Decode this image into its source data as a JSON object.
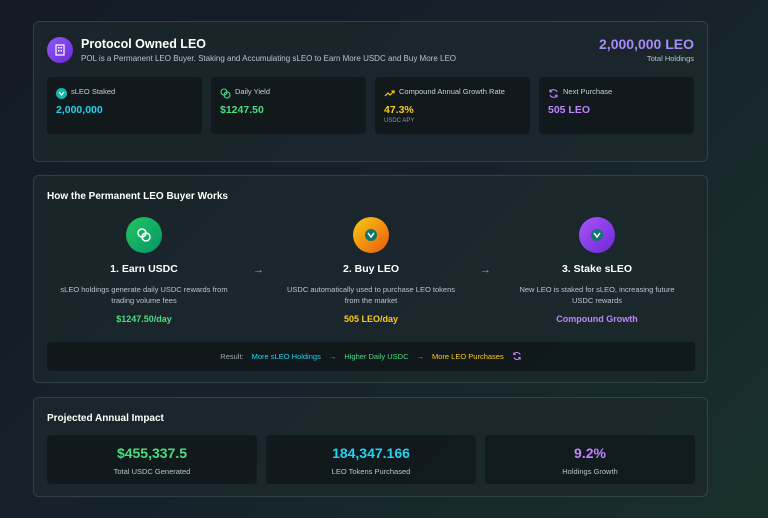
{
  "header": {
    "title": "Protocol Owned LEO",
    "subtitle": "POL is a Permanent LEO Buyer. Staking and Accumulating sLEO to Earn More USDC and Buy More LEO",
    "total_holdings_value": "2,000,000 LEO",
    "total_holdings_label": "Total Holdings"
  },
  "stats": [
    {
      "label": "sLEO Staked",
      "value": "2,000,000",
      "icon": "sleo-logo-icon",
      "color": "#22d3ee"
    },
    {
      "label": "Daily Yield",
      "value": "$1247.50",
      "icon": "coins-icon",
      "color": "#4ade80"
    },
    {
      "label": "Compound Annual Growth Rate",
      "value": "47.3%",
      "note": "USDC APY",
      "icon": "trending-up-icon",
      "color": "#facc15"
    },
    {
      "label": "Next Purchase",
      "value": "505 LEO",
      "icon": "refresh-icon",
      "color": "#c084fc"
    }
  ],
  "how": {
    "title": "How the Permanent LEO Buyer Works",
    "steps": [
      {
        "title": "1. Earn USDC",
        "desc_line1": "sLEO holdings generate daily USDC rewards from",
        "desc_line2": "trading volume fees",
        "value": "$1247.50/day",
        "color": "#4ade80"
      },
      {
        "title": "2. Buy LEO",
        "desc_line1": "USDC automatically used to purchase LEO tokens",
        "desc_line2": "from the market",
        "value": "505 LEO/day",
        "color": "#facc15"
      },
      {
        "title": "3. Stake sLEO",
        "desc_line1": "New LEO is staked for sLEO, increasing future",
        "desc_line2": "USDC rewards",
        "value": "Compound Growth",
        "color": "#c084fc"
      }
    ],
    "result": {
      "label": "Result:",
      "item1": "More sLEO Holdings",
      "item2": "Higher Daily USDC",
      "item3": "More LEO Purchases"
    }
  },
  "impact": {
    "title": "Projected Annual Impact",
    "items": [
      {
        "value": "$455,337.5",
        "label": "Total USDC Generated",
        "color": "#4ade80"
      },
      {
        "value": "184,347.166",
        "label": "LEO Tokens Purchased",
        "color": "#22d3ee"
      },
      {
        "value": "9.2%",
        "label": "Holdings Growth",
        "color": "#c084fc"
      }
    ]
  }
}
